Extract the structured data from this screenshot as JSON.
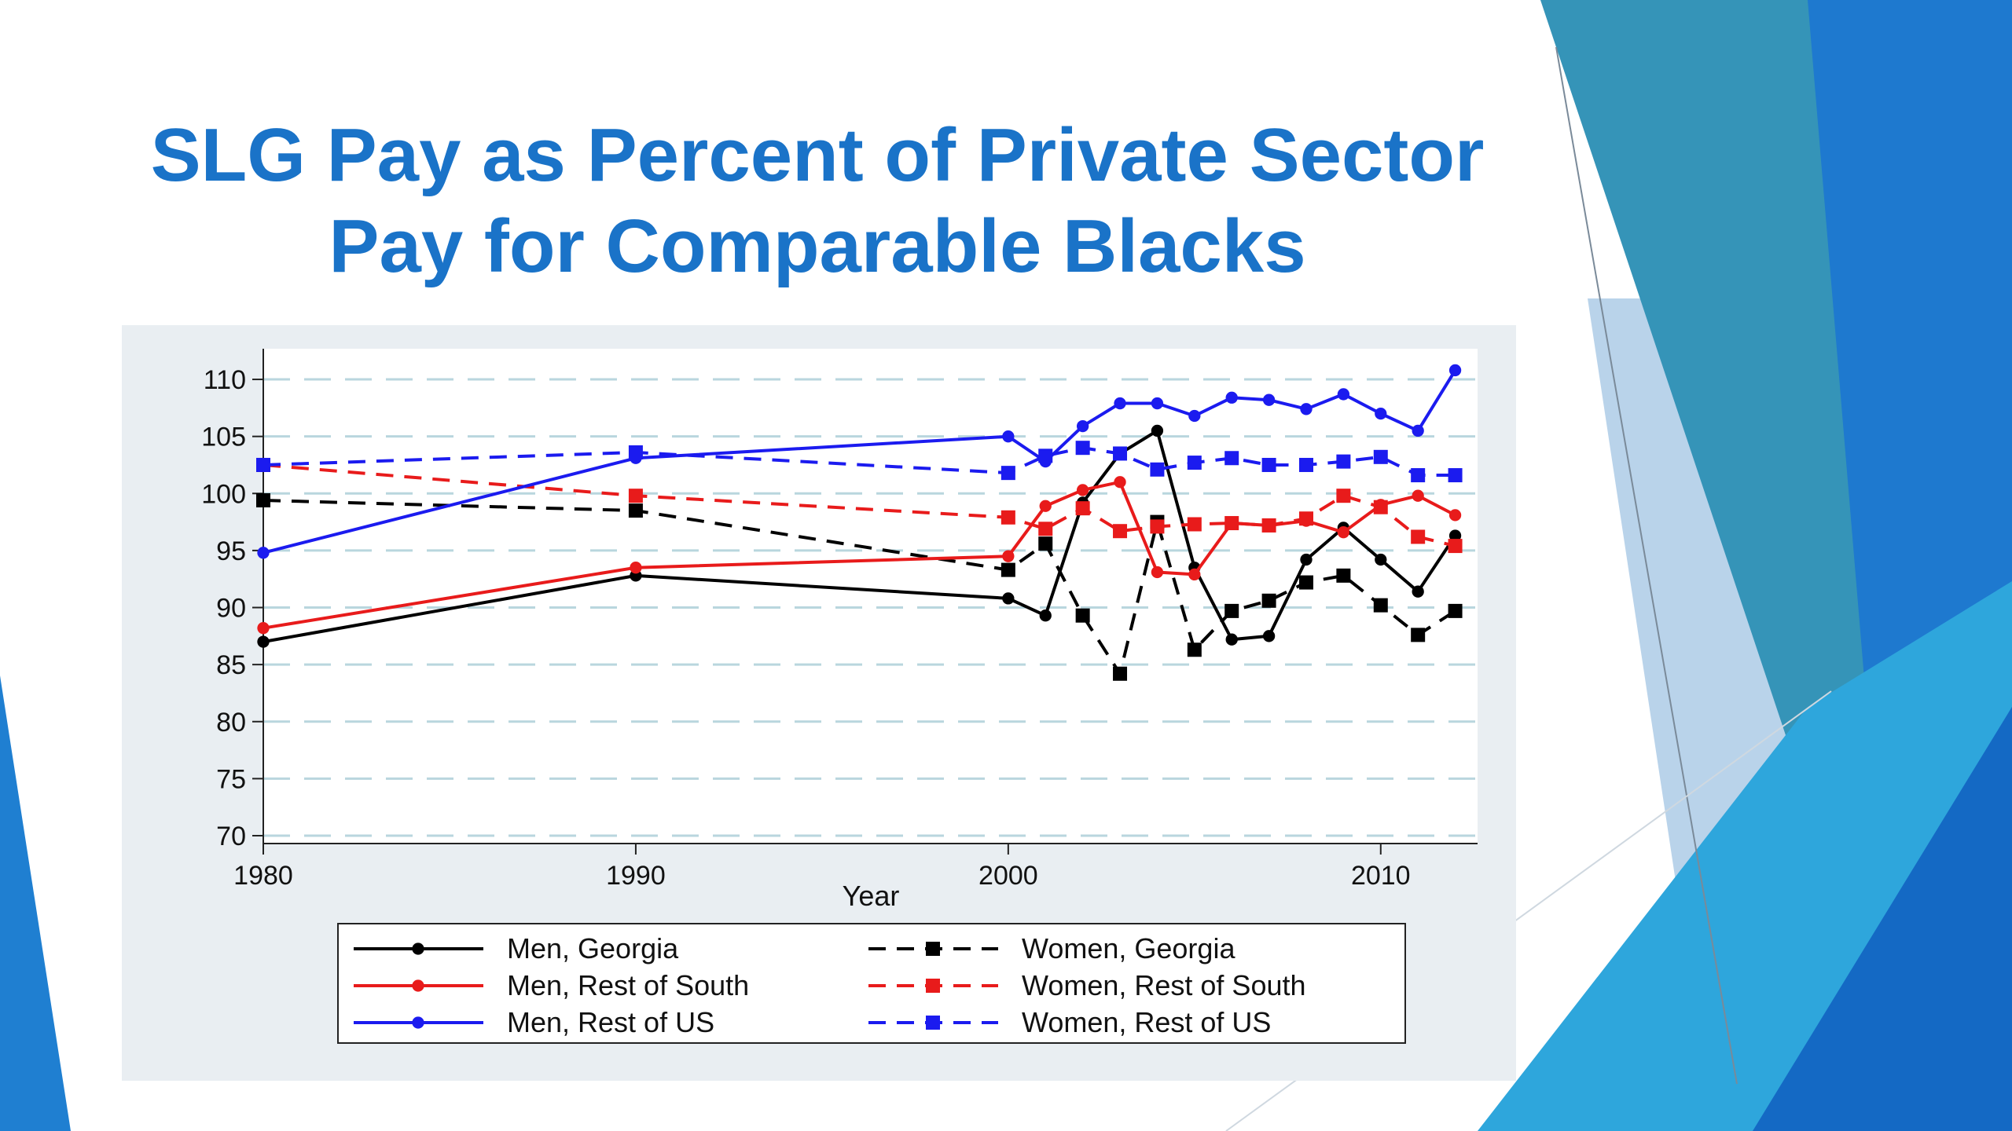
{
  "slide": {
    "title_line1": "SLG Pay as Percent of Private Sector",
    "title_line2": "Pay for Comparable Blacks"
  },
  "theme": {
    "title_color": "#1a73c8",
    "accent_blue": "#1f7fd1",
    "accent_teal": "#2a9ac0",
    "panel_bg": "#e9eef2"
  },
  "chart_data": {
    "type": "line",
    "title": "",
    "xlabel": "Year",
    "ylabel": "",
    "xlim": [
      1980,
      2012.6
    ],
    "ylim": [
      70,
      112
    ],
    "xticks": [
      1980,
      1990,
      2000,
      2010
    ],
    "yticks": [
      70,
      75,
      80,
      85,
      90,
      95,
      100,
      105,
      110
    ],
    "grid": "horizontal dashed",
    "legend_position": "bottom",
    "x": [
      1980,
      1990,
      2000,
      2001,
      2002,
      2003,
      2004,
      2005,
      2006,
      2007,
      2008,
      2009,
      2010,
      2011,
      2012
    ],
    "series": [
      {
        "name": "Men, Georgia",
        "color": "#000000",
        "style": "solid",
        "marker": "circle",
        "values": [
          87.0,
          92.8,
          90.8,
          89.3,
          99.2,
          103.5,
          105.5,
          93.5,
          87.2,
          87.5,
          94.2,
          97.0,
          94.2,
          91.4,
          96.3
        ]
      },
      {
        "name": "Women, Georgia",
        "color": "#000000",
        "style": "dashed",
        "marker": "square",
        "values": [
          99.4,
          98.5,
          93.3,
          95.6,
          89.3,
          84.2,
          97.5,
          86.3,
          89.7,
          90.6,
          92.2,
          92.8,
          90.2,
          87.6,
          89.7
        ]
      },
      {
        "name": "Men, Rest of South",
        "color": "#e81b1b",
        "style": "solid",
        "marker": "circle",
        "values": [
          88.2,
          93.5,
          94.5,
          98.9,
          100.3,
          101.0,
          93.1,
          92.9,
          97.4,
          97.2,
          97.6,
          96.6,
          99.0,
          99.8,
          98.1
        ]
      },
      {
        "name": "Women, Rest of South",
        "color": "#e81b1b",
        "style": "dashed",
        "marker": "square",
        "values": [
          102.5,
          99.8,
          97.9,
          96.9,
          98.7,
          96.7,
          97.1,
          97.3,
          97.4,
          97.2,
          97.8,
          99.8,
          98.8,
          96.2,
          95.4
        ]
      },
      {
        "name": "Men, Rest of US",
        "color": "#1b1bef",
        "style": "solid",
        "marker": "circle",
        "values": [
          94.8,
          103.1,
          105.0,
          102.8,
          105.9,
          107.9,
          107.9,
          106.8,
          108.4,
          108.2,
          107.4,
          108.7,
          107.0,
          105.5,
          110.8
        ]
      },
      {
        "name": "Women, Rest of US",
        "color": "#1b1bef",
        "style": "dashed",
        "marker": "square",
        "values": [
          102.5,
          103.6,
          101.8,
          103.3,
          104.0,
          103.5,
          102.1,
          102.7,
          103.1,
          102.5,
          102.5,
          102.8,
          103.2,
          101.6,
          101.6
        ]
      }
    ]
  }
}
